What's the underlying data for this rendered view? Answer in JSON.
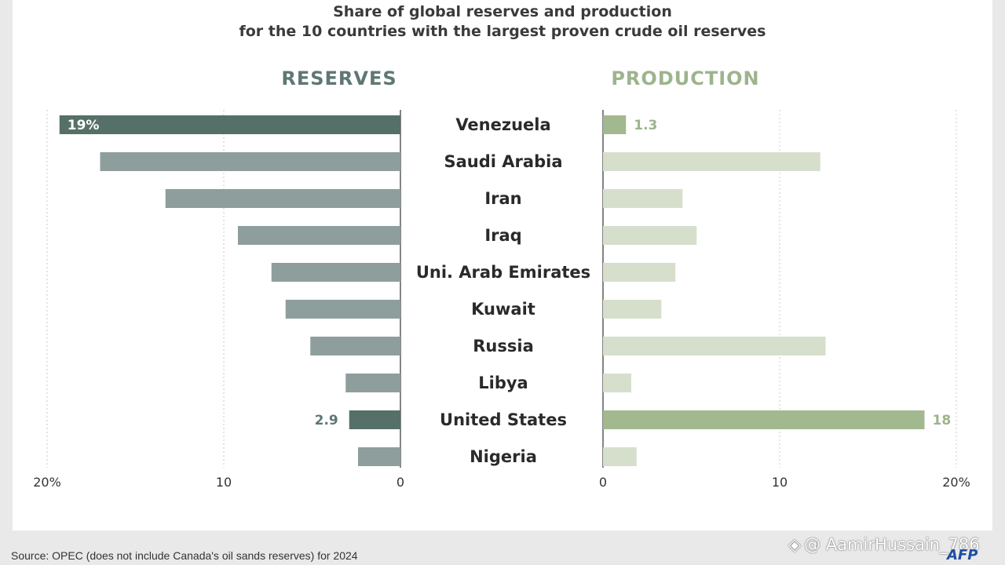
{
  "chart_data": {
    "type": "bar",
    "title_line1": "Share of global reserves and production",
    "title_line2": "for the 10 countries with the largest proven crude oil reserves",
    "categories": [
      "Venezuela",
      "Saudi Arabia",
      "Iran",
      "Iraq",
      "Uni. Arab Emirates",
      "Kuwait",
      "Russia",
      "Libya",
      "United States",
      "Nigeria"
    ],
    "highlighted": [
      "Venezuela",
      "United States"
    ],
    "series": [
      {
        "name": "RESERVES",
        "values": [
          19.3,
          17.0,
          13.3,
          9.2,
          7.3,
          6.5,
          5.1,
          3.1,
          2.9,
          2.4
        ],
        "xlim": [
          0,
          20
        ],
        "ticks": [
          "20%",
          "10",
          "0"
        ],
        "direction": "left",
        "color": "#8d9e9d",
        "highlight_color": "#557068"
      },
      {
        "name": "PRODUCTION",
        "values": [
          1.3,
          12.3,
          4.5,
          5.3,
          4.1,
          3.3,
          12.6,
          1.6,
          18.2,
          1.9
        ],
        "xlim": [
          0,
          20
        ],
        "ticks": [
          "0",
          "10",
          "20%"
        ],
        "direction": "right",
        "color": "#d6dfcc",
        "highlight_color": "#a2b98f"
      }
    ],
    "data_labels": [
      {
        "series": "RESERVES",
        "category": "Venezuela",
        "text": "19%"
      },
      {
        "series": "RESERVES",
        "category": "United States",
        "text": "2.9"
      },
      {
        "series": "PRODUCTION",
        "category": "Venezuela",
        "text": "1.3"
      },
      {
        "series": "PRODUCTION",
        "category": "United States",
        "text": "18"
      }
    ]
  },
  "source": "Source: OPEC (does not include Canada's oil sands reserves) for 2024",
  "watermark": "@ AamirHussain_786",
  "logo": "AFP"
}
